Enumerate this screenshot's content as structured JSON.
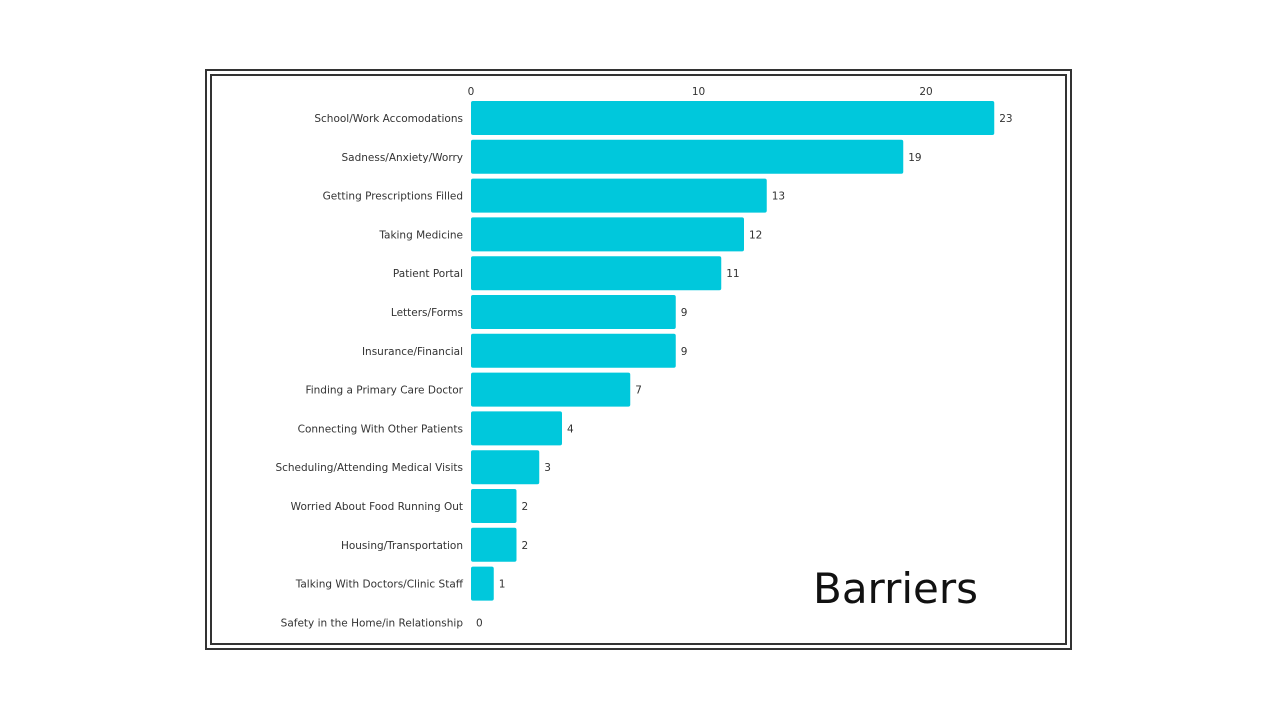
{
  "colors": {
    "bar": "#00C8DC",
    "frame": "#333333",
    "text": "#333333"
  },
  "chart_data": {
    "type": "bar",
    "orientation": "horizontal",
    "title": "Barriers",
    "xlabel": "",
    "ylabel": "",
    "xlim": [
      0,
      23
    ],
    "x_ticks": [
      0,
      10,
      20
    ],
    "x_axis_position": "top",
    "grid": false,
    "categories": [
      "School/Work Accomodations",
      "Sadness/Anxiety/Worry",
      "Getting Prescriptions Filled",
      "Taking Medicine",
      "Patient Portal",
      "Letters/Forms",
      "Insurance/Financial",
      "Finding a Primary Care Doctor",
      "Connecting With Other Patients",
      "Scheduling/Attending Medical Visits",
      "Worried About Food Running Out",
      "Housing/Transportation",
      "Talking With Doctors/Clinic Staff",
      "Safety in the Home/in Relationship"
    ],
    "values": [
      23,
      19,
      13,
      12,
      11,
      9,
      9,
      7,
      4,
      3,
      2,
      2,
      1,
      0
    ]
  }
}
